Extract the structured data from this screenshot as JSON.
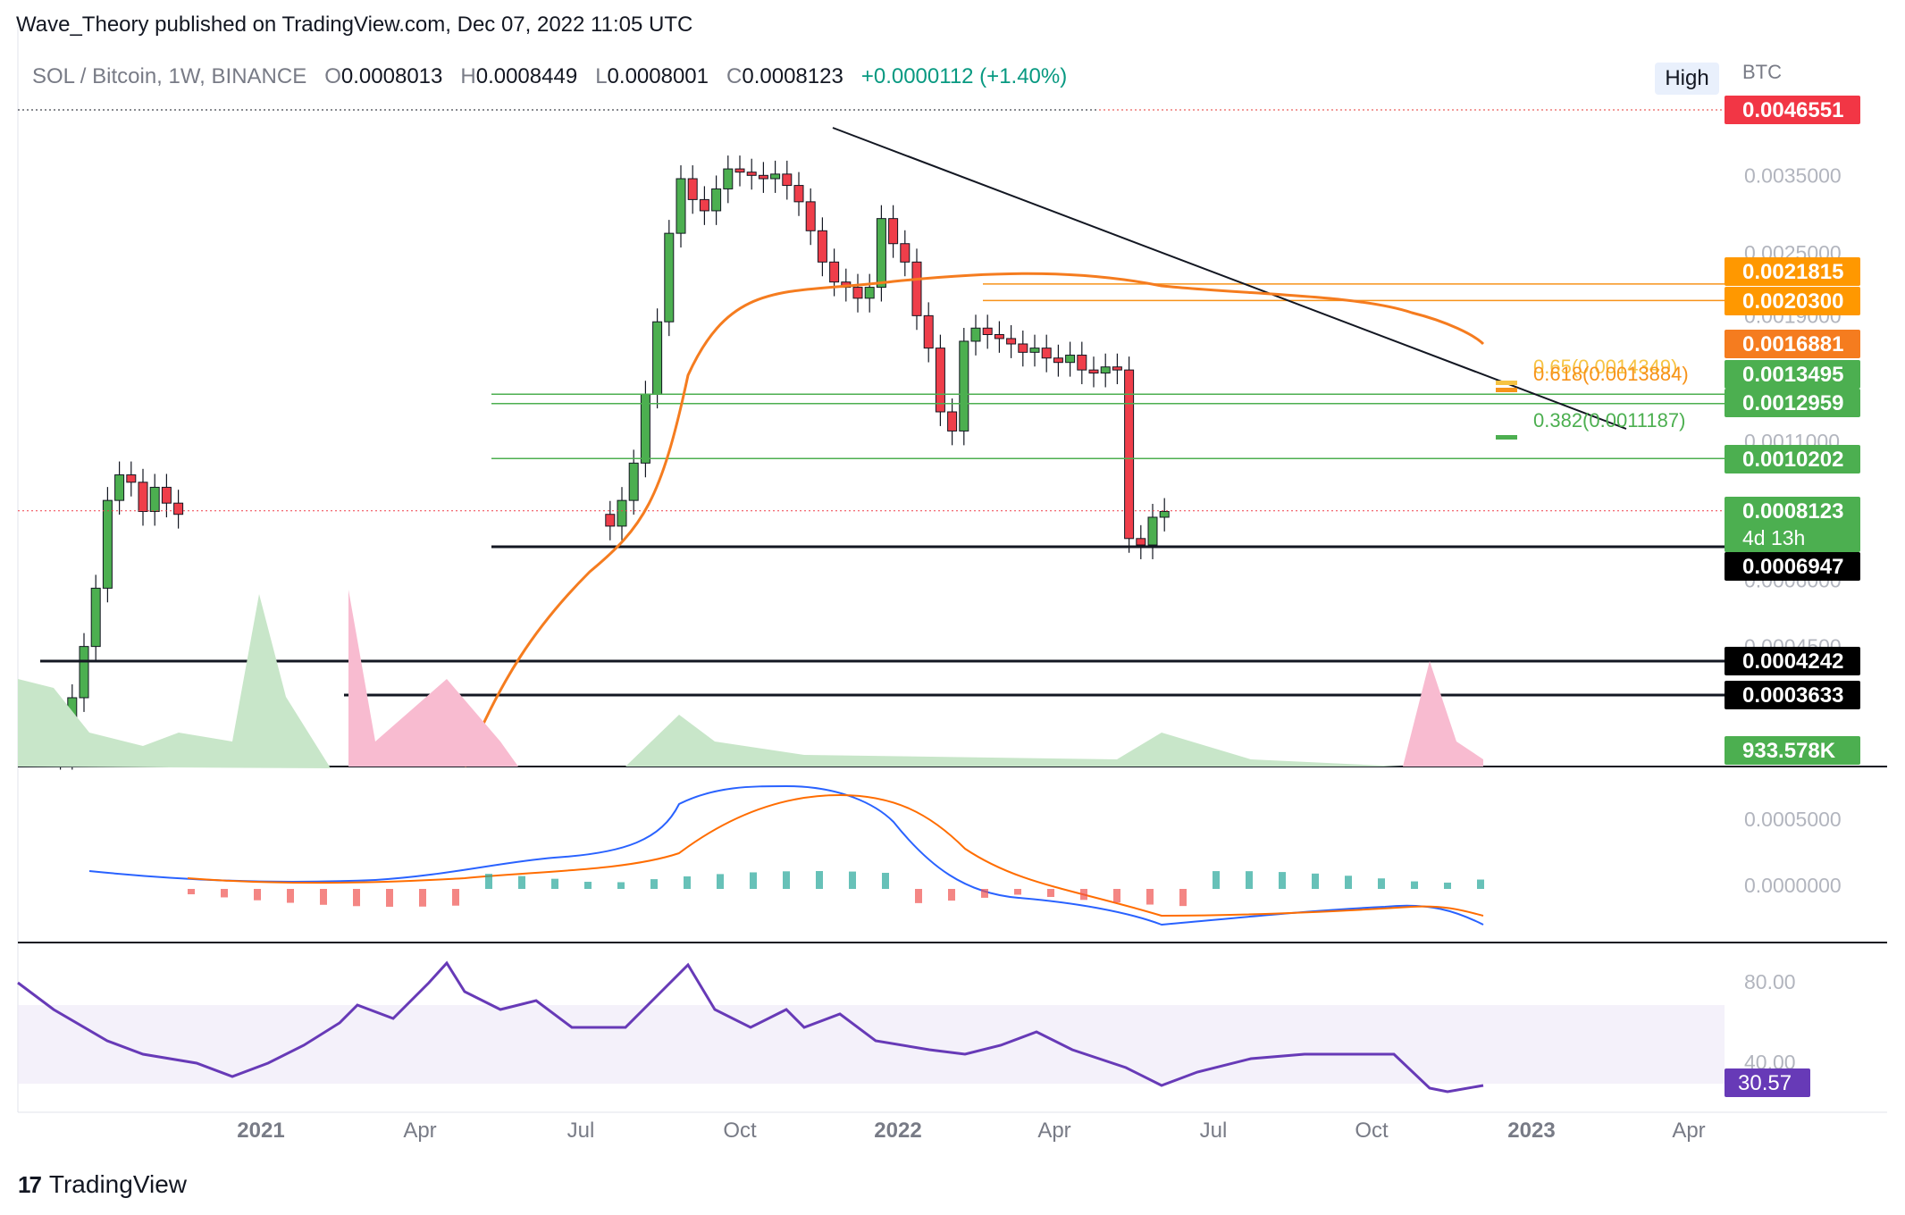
{
  "publisher": "Wave_Theory published on TradingView.com, Dec 07, 2022 11:05 UTC",
  "symbol": "SOL / Bitcoin, 1W, BINANCE",
  "ohlc": {
    "o_label": "O",
    "o": "0.0008013",
    "h_label": "H",
    "h": "0.0008449",
    "l_label": "L",
    "l": "0.0008001",
    "c_label": "C",
    "c": "0.0008123",
    "change": "+0.0000112 (+1.40%)"
  },
  "high_button": "High",
  "currency": "BTC",
  "logo_text": "TradingView",
  "colors": {
    "up": "#4caf50",
    "down": "#ef3e4a",
    "ma": "#f57c1f",
    "green_level": "#4caf50",
    "orange_level": "#f7931a",
    "macd": "#2962ff",
    "signal": "#ff6d00",
    "rsi": "#673ab7"
  },
  "price_axis": {
    "ticks": [
      "0.0035000",
      "0.0025000",
      "0.0019000",
      "0.0011000",
      "0.0006000",
      "0.0004500"
    ]
  },
  "price_labels": [
    {
      "text": "0.0046551",
      "kind": "red"
    },
    {
      "text": "0.0021815",
      "kind": "orange"
    },
    {
      "text": "0.0020300",
      "kind": "orange"
    },
    {
      "text": "0.0016881",
      "kind": "ma"
    },
    {
      "text": "0.0013495",
      "kind": "green"
    },
    {
      "text": "0.0012959",
      "kind": "green"
    },
    {
      "text": "0.0010202",
      "kind": "green"
    },
    {
      "text": "0.0008123",
      "kind": "last",
      "sub": "4d 13h"
    },
    {
      "text": "0.0006947",
      "kind": "black"
    },
    {
      "text": "0.0004242",
      "kind": "black"
    },
    {
      "text": "0.0003633",
      "kind": "black"
    },
    {
      "text": "933.578K",
      "kind": "vol"
    }
  ],
  "fib_labels": [
    "0.65(0.0014349)",
    "0.618(0.0013884)",
    "0.382(0.0011187)"
  ],
  "macd_axis": [
    "0.0005000",
    "0.0000000"
  ],
  "rsi_axis": [
    "80.00",
    "40.00"
  ],
  "rsi_value": "30.57",
  "time_axis": [
    "2021",
    "Apr",
    "Jul",
    "Oct",
    "2022",
    "Apr",
    "Jul",
    "Oct",
    "2023",
    "Apr"
  ],
  "chart_data": {
    "type": "candlestick",
    "title": "SOL / Bitcoin, 1W, BINANCE",
    "candles_close": [
      0.00032,
      0.0003,
      0.00029,
      0.00028,
      0.00036,
      0.00045,
      0.00058,
      0.00085,
      0.00095,
      0.00092,
      0.00081,
      0.0009,
      0.00084,
      0.0008,
      0.00076,
      0.00085,
      0.001,
      0.00135,
      0.00185,
      0.00272,
      0.00345,
      0.00315,
      0.003,
      0.0033,
      0.0036,
      0.00355,
      0.0035,
      0.00345,
      0.00352,
      0.00335,
      0.00312,
      0.00275,
      0.0024,
      0.0022,
      0.00215,
      0.00205,
      0.00215,
      0.0029,
      0.0026,
      0.0024,
      0.0019,
      0.00165,
      0.00125,
      0.00115,
      0.0017,
      0.0018,
      0.00175,
      0.00172,
      0.00168,
      0.00162,
      0.00165,
      0.00158,
      0.00155,
      0.0016,
      0.0015,
      0.00148,
      0.00152,
      0.0015,
      0.00072,
      0.0007,
      0.00079,
      0.00081
    ],
    "levels": [
      0.0046551,
      0.0021815,
      0.00203,
      0.0013495,
      0.0012959,
      0.0010202,
      0.0006947,
      0.0004242,
      0.0003633
    ],
    "ma_last": 0.0016881,
    "last_price": 0.0008123,
    "volume_last": "933.578K",
    "rsi_last": 30.57
  }
}
